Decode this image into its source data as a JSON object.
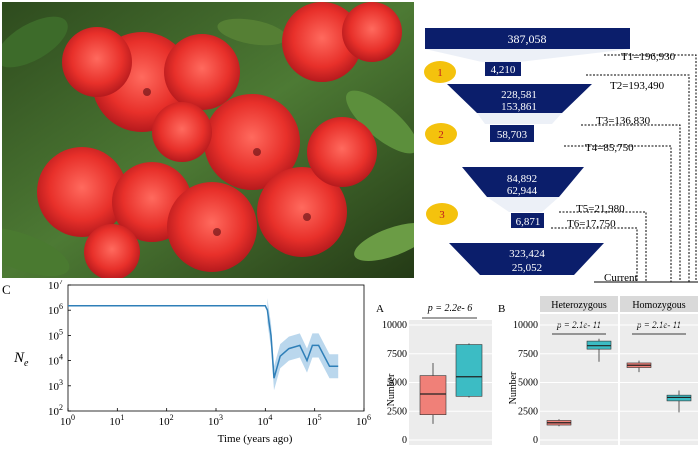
{
  "photo": {
    "alt": "Red rhododendron flowers"
  },
  "demography": {
    "top": "387,058",
    "bottlenecks": [
      {
        "label": "1",
        "value": "4,210",
        "expand_top": "228,581",
        "expand_bottom": "153,861"
      },
      {
        "label": "2",
        "value": "58,703",
        "expand_top": "84,892",
        "expand_bottom": "62,944"
      },
      {
        "label": "3",
        "value": "6,871",
        "expand_top": "323,424",
        "expand_bottom": "25,052"
      }
    ],
    "times": [
      "T1=196,930",
      "T2=193,490",
      "T3=136,830",
      "T4=85,750",
      "T5=21,980",
      "T6=17,750"
    ],
    "current_label": "Current"
  },
  "panel_c": {
    "label": "C",
    "ylabel": "N",
    "ylabel_sub": "e",
    "xlabel": "Time (years ago)",
    "yticks": [
      "10",
      "10",
      "10",
      "10",
      "10",
      "10"
    ],
    "yexp": [
      "2",
      "3",
      "4",
      "5",
      "6",
      "7"
    ],
    "xticks": [
      "10",
      "10",
      "10",
      "10",
      "10",
      "10",
      "10"
    ],
    "xexp": [
      "0",
      "1",
      "2",
      "3",
      "4",
      "5",
      "6"
    ]
  },
  "chart_data": [
    {
      "type": "line",
      "panel": "C",
      "xlabel": "Time (years ago)",
      "ylabel": "Ne",
      "xscale": "log",
      "yscale": "log",
      "xlim": [
        1,
        1000000
      ],
      "ylim": [
        100,
        10000000
      ],
      "x": [
        1,
        10000,
        11000,
        12000,
        13000,
        15000,
        20000,
        30000,
        50000,
        70000,
        90000,
        120000,
        200000,
        300000
      ],
      "y": [
        1500000,
        1500000,
        1000000,
        300000,
        100000,
        2000,
        15000,
        30000,
        40000,
        10000,
        40000,
        40000,
        6000,
        6000
      ]
    },
    {
      "type": "box",
      "panel": "A",
      "ylabel": "Number",
      "annotation": "p = 2.2e- 6",
      "yticks": [
        "0",
        "2500",
        "5000",
        "7500",
        "10000"
      ],
      "ylim": [
        0,
        10000
      ],
      "series": [
        {
          "color": "#f08078",
          "q1": 2200,
          "median": 4000,
          "q3": 5600,
          "min": 1400,
          "max": 6700
        },
        {
          "color": "#3cbcc4",
          "q1": 3800,
          "median": 5500,
          "q3": 8300,
          "min": 3700,
          "max": 8400
        }
      ]
    },
    {
      "type": "box",
      "panel": "B",
      "ylabel": "Number",
      "groups": [
        "Heterozygous",
        "Homozygous"
      ],
      "annotations": [
        "p = 2.1e- 11",
        "p = 2.1e- 11"
      ],
      "yticks": [
        "0",
        "2500",
        "5000",
        "7500",
        "10000"
      ],
      "ylim": [
        0,
        10000
      ],
      "series": [
        {
          "group": "Heterozygous",
          "color": "#f08078",
          "q1": 1300,
          "median": 1500,
          "q3": 1700,
          "min": 1200,
          "max": 1800
        },
        {
          "group": "Heterozygous",
          "color": "#3cbcc4",
          "q1": 7900,
          "median": 8200,
          "q3": 8600,
          "min": 6800,
          "max": 8800
        },
        {
          "group": "Homozygous",
          "color": "#f08078",
          "q1": 6300,
          "median": 6500,
          "q3": 6700,
          "min": 5900,
          "max": 6900
        },
        {
          "group": "Homozygous",
          "color": "#3cbcc4",
          "q1": 3400,
          "median": 3700,
          "q3": 3900,
          "min": 2400,
          "max": 4300
        }
      ]
    }
  ],
  "panel_a": {
    "label": "A",
    "ylabel": "Number",
    "p": "p = 2.2e- 6",
    "yticks": [
      "0",
      "2500",
      "5000",
      "7500",
      "10000"
    ]
  },
  "panel_b": {
    "label": "B",
    "ylabel": "Number",
    "group1": "Heterozygous",
    "group2": "Homozygous",
    "p1": "p = 2.1e- 11",
    "p2": "p = 2.1e- 11",
    "yticks": [
      "0",
      "2500",
      "5000",
      "7500",
      "10000"
    ]
  },
  "colors": {
    "navy": "#0b1e6b",
    "gold": "#f4c20d",
    "red": "#f08078",
    "teal": "#3cbcc4",
    "line": "#2f7fb8"
  }
}
